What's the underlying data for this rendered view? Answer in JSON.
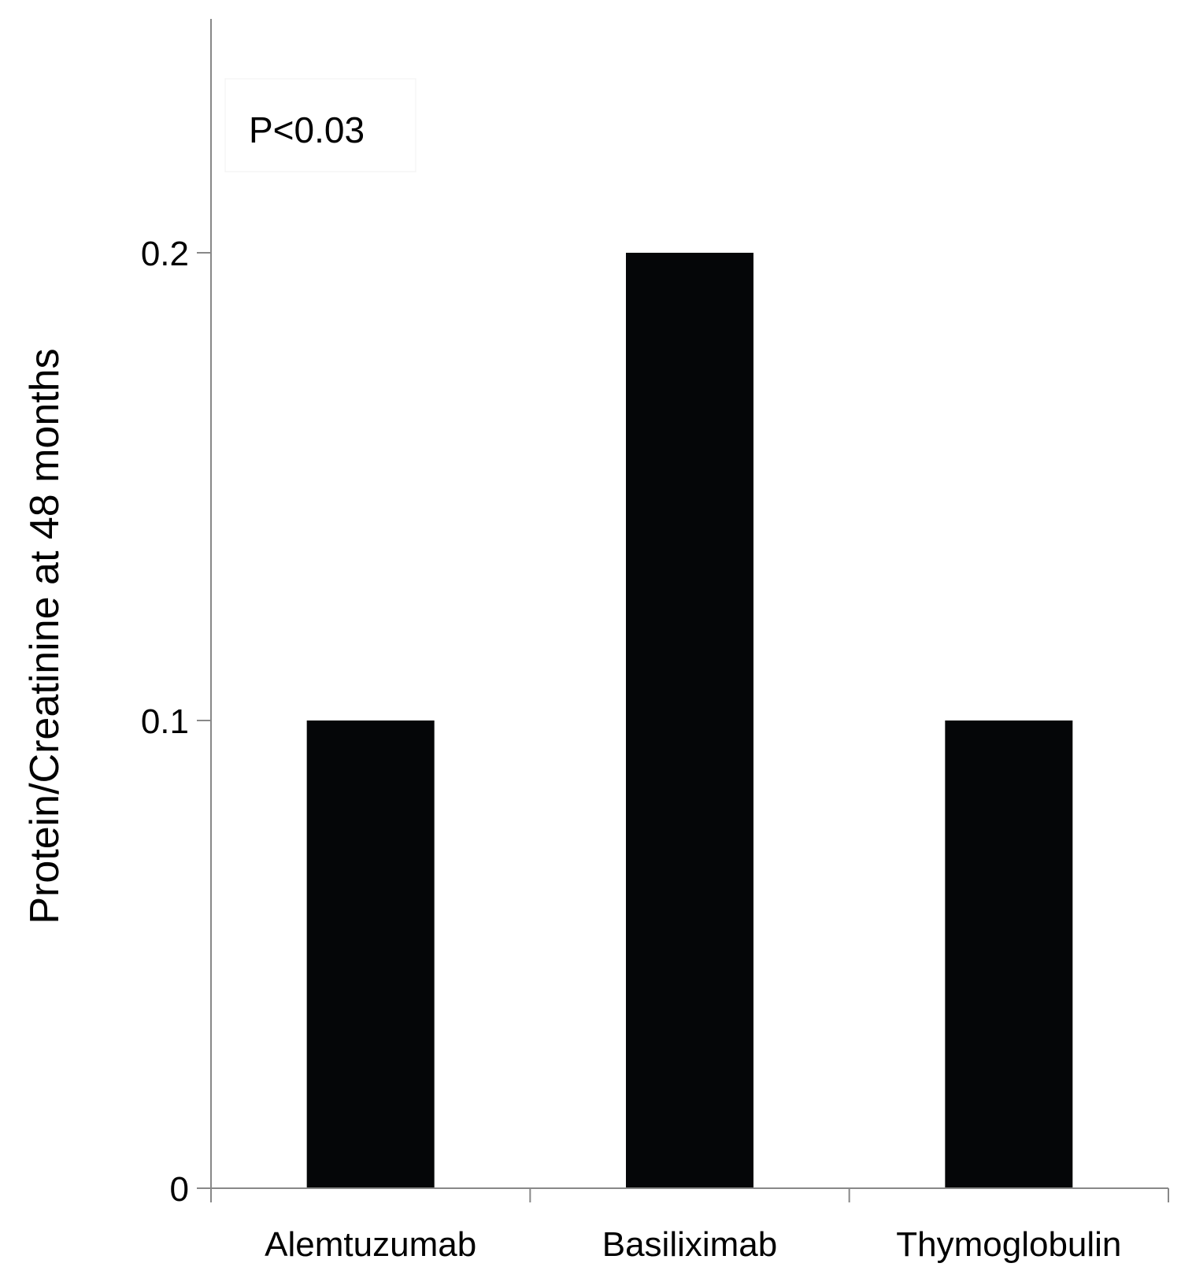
{
  "chart_data": {
    "type": "bar",
    "categories": [
      "Alemtuzumab",
      "Basiliximab",
      "Thymoglobulin"
    ],
    "values": [
      0.1,
      0.2,
      0.1
    ],
    "ylabel": "Protein/Creatinine at 48 months",
    "xlabel": "",
    "ylim": [
      0,
      0.25
    ],
    "yticks": [
      0,
      0.1,
      0.2
    ],
    "ytick_labels": [
      "0",
      "0.1",
      "0.2"
    ],
    "annotation": "P<0.03",
    "grid": false,
    "legend": "none",
    "bar_color": "#050608",
    "axis_color": "#888888"
  }
}
